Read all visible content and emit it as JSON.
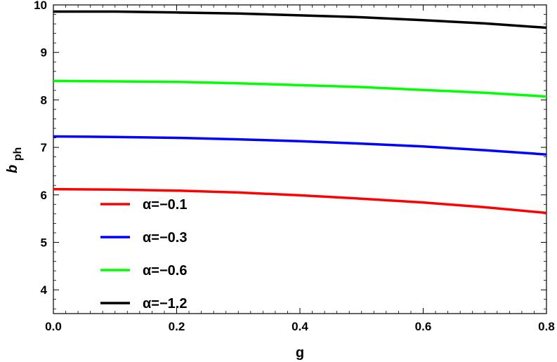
{
  "chart_data": {
    "type": "line",
    "title": "",
    "xlabel": "g",
    "ylabel_main": "b",
    "ylabel_sub": "ph",
    "xlim": [
      0.0,
      0.8
    ],
    "ylim": [
      3.5,
      10.0
    ],
    "xticks": [
      "0.0",
      "0.2",
      "0.4",
      "0.6",
      "0.8"
    ],
    "yticks": [
      "4",
      "5",
      "6",
      "7",
      "8",
      "9",
      "10"
    ],
    "grid": false,
    "legend_position": "bottom-left",
    "x": [
      0.0,
      0.1,
      0.2,
      0.3,
      0.4,
      0.5,
      0.6,
      0.7,
      0.8
    ],
    "series": [
      {
        "name": "α=−0.1",
        "color": "#ff0000",
        "values": [
          6.12,
          6.11,
          6.09,
          6.05,
          5.99,
          5.92,
          5.84,
          5.74,
          5.62
        ]
      },
      {
        "name": "α=−0.3",
        "color": "#0000ff",
        "values": [
          7.23,
          7.22,
          7.2,
          7.17,
          7.13,
          7.08,
          7.02,
          6.94,
          6.85
        ]
      },
      {
        "name": "α=−0.6",
        "color": "#00ff00",
        "values": [
          8.4,
          8.39,
          8.38,
          8.35,
          8.31,
          8.27,
          8.21,
          8.15,
          8.07
        ]
      },
      {
        "name": "α=−1.2",
        "color": "#000000",
        "values": [
          9.86,
          9.86,
          9.84,
          9.82,
          9.78,
          9.74,
          9.68,
          9.61,
          9.52
        ]
      }
    ]
  }
}
